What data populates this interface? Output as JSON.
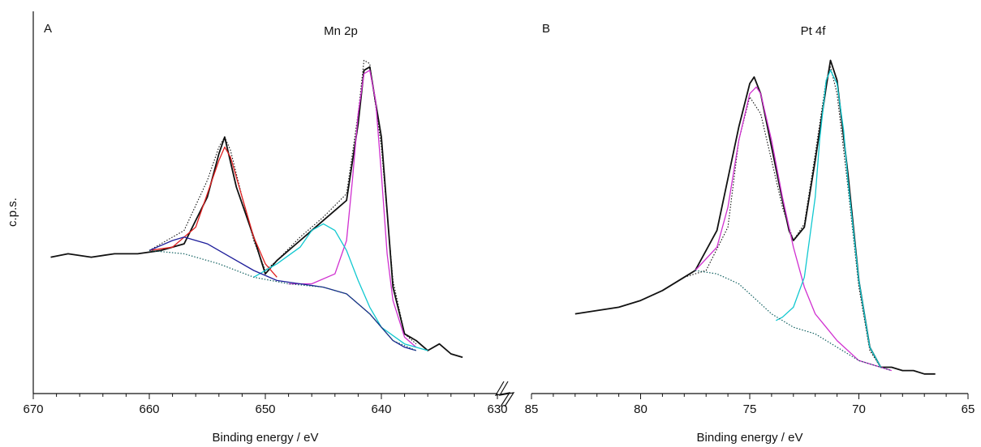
{
  "shared_ylabel": "c.p.s.",
  "chart_data": [
    {
      "type": "line",
      "panel_label": "A",
      "title": "Mn 2p",
      "xlabel": "Binding energy / eV",
      "xlim": [
        670,
        630
      ],
      "x_reversed": true,
      "xticks": [
        670,
        660,
        650,
        640,
        630
      ],
      "ylim": [
        0,
        100
      ],
      "y_ticks_shown": false,
      "series": [
        {
          "role": "measured",
          "color": "#111111",
          "dash": "none",
          "width": 1.8,
          "x": [
            668.5,
            667,
            665,
            663,
            661,
            659,
            657,
            655,
            654,
            653.5,
            652.5,
            651,
            650,
            649,
            647,
            645,
            643,
            642,
            641.5,
            641,
            640,
            639,
            638,
            637,
            636,
            635,
            634,
            633
          ],
          "y": [
            37,
            38,
            37,
            38,
            38,
            39,
            41,
            55,
            68,
            73,
            58,
            43,
            32,
            36,
            42,
            48,
            54,
            77,
            93,
            94,
            73,
            28,
            14,
            12,
            9,
            11,
            8,
            7
          ]
        },
        {
          "role": "envelope",
          "color": "#111111",
          "dash": "1.5,2",
          "width": 1.1,
          "x": [
            660,
            657,
            655,
            654,
            653.5,
            653,
            652,
            651,
            650,
            649,
            647,
            645,
            643,
            642,
            641.5,
            641,
            640,
            639,
            638,
            637
          ],
          "y": [
            39,
            45,
            60,
            70,
            73,
            69,
            55,
            42,
            33,
            36,
            43,
            49,
            56,
            80,
            96,
            95,
            70,
            30,
            14,
            11
          ]
        },
        {
          "role": "component",
          "color": "#e02020",
          "dash": "none",
          "width": 1.3,
          "x": [
            660,
            658,
            656,
            655,
            654,
            653.5,
            653,
            652,
            651,
            650,
            649
          ],
          "y": [
            39,
            40,
            46,
            56,
            66,
            70,
            67,
            55,
            43,
            35,
            31
          ]
        },
        {
          "role": "component",
          "color": "#d030d0",
          "dash": "none",
          "width": 1.3,
          "x": [
            648,
            646,
            644,
            643,
            642.5,
            642,
            641.5,
            641,
            640.5,
            640,
            639.5,
            639,
            638,
            637
          ],
          "y": [
            29,
            29,
            32,
            42,
            60,
            80,
            92,
            93,
            84,
            62,
            38,
            24,
            13,
            10
          ]
        },
        {
          "role": "component",
          "color": "#10c8d0",
          "dash": "none",
          "width": 1.3,
          "x": [
            651,
            649,
            647,
            646,
            645,
            644,
            643,
            642,
            641,
            640,
            638,
            636
          ],
          "y": [
            31,
            35,
            40,
            45,
            47,
            45,
            39,
            30,
            22,
            16,
            11,
            9
          ]
        },
        {
          "role": "component",
          "color": "#1d1d9a",
          "dash": "none",
          "width": 1.3,
          "x": [
            660,
            658,
            657,
            655,
            653,
            651,
            649,
            647,
            645,
            643,
            641,
            639,
            638,
            637
          ],
          "y": [
            39,
            42,
            43,
            41,
            37,
            33,
            30,
            29,
            28,
            26,
            20,
            12,
            10,
            9
          ]
        },
        {
          "role": "background",
          "color": "#116060",
          "dash": "1.5,2",
          "width": 1.2,
          "x": [
            660,
            657,
            654,
            651,
            648,
            645,
            643,
            641,
            639,
            637
          ],
          "y": [
            39,
            38,
            35,
            31,
            29,
            28,
            26,
            20,
            12,
            9
          ]
        }
      ]
    },
    {
      "type": "line",
      "panel_label": "B",
      "title": "Pt 4f",
      "xlabel": "Binding energy / eV",
      "xlim": [
        85,
        65
      ],
      "x_reversed": true,
      "xticks": [
        85,
        80,
        75,
        70,
        65
      ],
      "ylim": [
        0,
        100
      ],
      "y_ticks_shown": false,
      "series": [
        {
          "role": "measured",
          "color": "#111111",
          "dash": "none",
          "width": 1.8,
          "x": [
            83,
            82,
            81,
            80,
            79,
            78,
            77.5,
            76.5,
            75.5,
            75,
            74.8,
            74.5,
            74,
            73.5,
            73.2,
            73,
            72.5,
            72,
            71.5,
            71.3,
            71,
            70.5,
            70,
            69.5,
            69,
            68.5,
            68,
            67.5,
            67,
            66.5
          ],
          "y": [
            20,
            21,
            22,
            24,
            27,
            31,
            33,
            45,
            76,
            89,
            91,
            86,
            70,
            54,
            45,
            42,
            46,
            66,
            88,
            96,
            90,
            62,
            30,
            10,
            4,
            4,
            3,
            3,
            2,
            2
          ]
        },
        {
          "role": "envelope",
          "color": "#111111",
          "dash": "1.5,2",
          "width": 1.1,
          "x": [
            78,
            77,
            76,
            75.5,
            75,
            74.5,
            74,
            73.5,
            73,
            72.5,
            72,
            71.5,
            71.3,
            71,
            70.5,
            70,
            69.5,
            69
          ],
          "y": [
            31,
            33,
            46,
            72,
            85,
            80,
            66,
            52,
            42,
            47,
            68,
            90,
            94,
            86,
            58,
            28,
            9,
            4
          ]
        },
        {
          "role": "component",
          "color": "#d030d0",
          "dash": "none",
          "width": 1.3,
          "x": [
            77.5,
            76.5,
            76,
            75.5,
            75,
            74.7,
            74.5,
            74,
            73.5,
            73,
            72.5,
            72,
            71,
            70,
            69,
            68.5
          ],
          "y": [
            33,
            40,
            52,
            72,
            86,
            88,
            86,
            72,
            55,
            40,
            28,
            20,
            12,
            6,
            4,
            3
          ]
        },
        {
          "role": "component",
          "color": "#10c8d0",
          "dash": "none",
          "width": 1.3,
          "x": [
            73.8,
            73.5,
            73,
            72.5,
            72,
            71.8,
            71.5,
            71.3,
            71,
            70.7,
            70.5,
            70,
            69.5,
            69
          ],
          "y": [
            18,
            19,
            22,
            31,
            55,
            72,
            90,
            93,
            89,
            75,
            60,
            30,
            10,
            4
          ]
        },
        {
          "role": "background",
          "color": "#116060",
          "dash": "1.5,2",
          "width": 1.2,
          "x": [
            77.5,
            76.5,
            75.5,
            74.5,
            74,
            73.5,
            73,
            72.5,
            72,
            71,
            70,
            69,
            68.5
          ],
          "y": [
            33,
            32,
            29,
            23,
            20,
            18,
            16,
            15,
            14,
            10,
            6,
            4,
            3
          ]
        }
      ]
    }
  ]
}
